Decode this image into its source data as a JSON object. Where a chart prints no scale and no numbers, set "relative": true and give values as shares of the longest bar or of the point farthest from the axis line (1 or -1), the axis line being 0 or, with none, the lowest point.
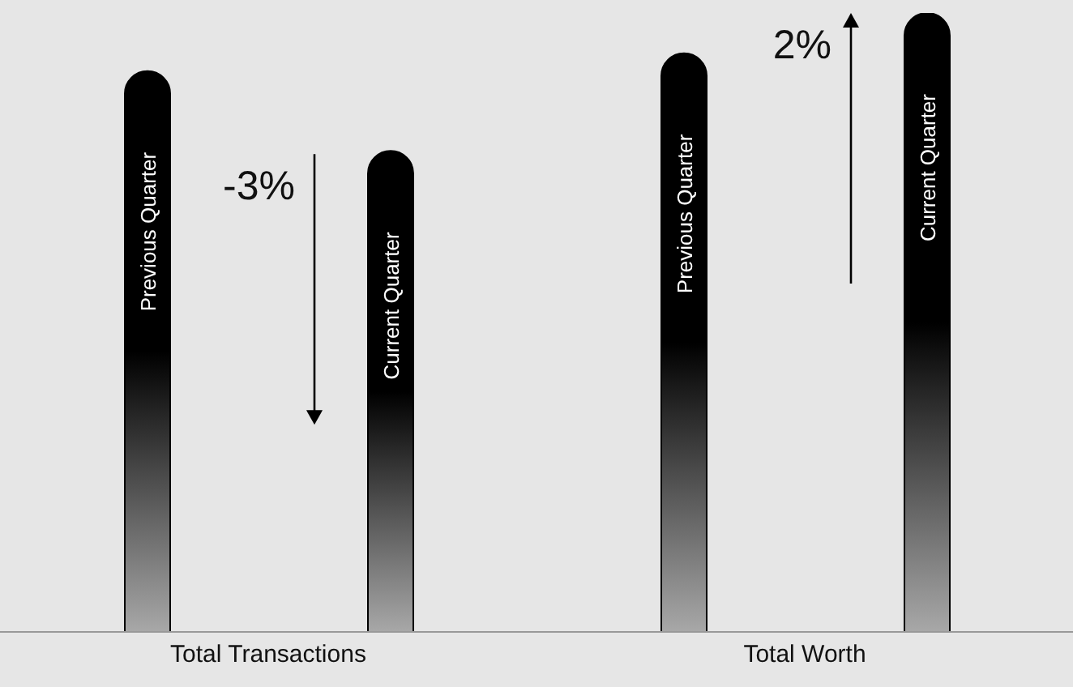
{
  "chart_data": {
    "type": "bar",
    "relative": true,
    "categories": [
      "Total Transactions",
      "Total Worth"
    ],
    "series": [
      {
        "name": "Previous Quarter",
        "color": "#000000",
        "values": [
          0.906,
          0.935
        ]
      },
      {
        "name": "Current Quarter",
        "color": "#000000",
        "values": [
          0.777,
          1.0
        ]
      }
    ],
    "annotations": [
      "-3%",
      "2%"
    ],
    "legend": false,
    "grid": false
  }
}
